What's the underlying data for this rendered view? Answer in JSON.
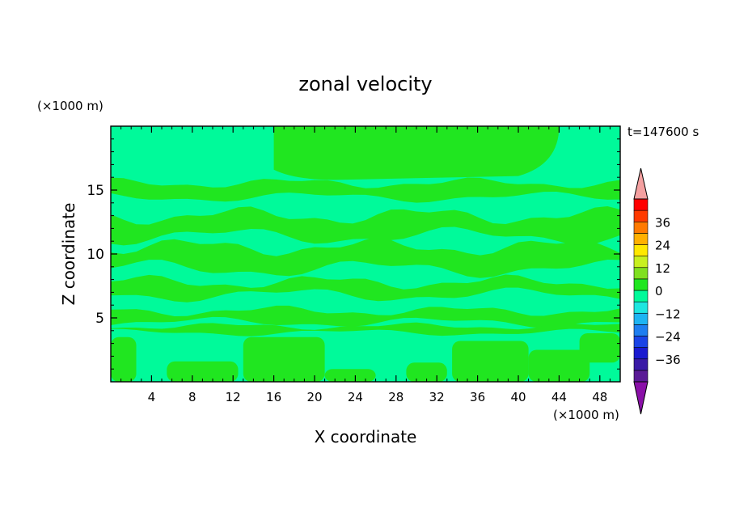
{
  "chart_data": {
    "type": "heatmap",
    "title": "zonal velocity",
    "xlabel": "X coordinate",
    "ylabel": "Z coordinate",
    "x_unit": "(×1000 m)",
    "y_unit": "(×1000 m)",
    "time_label": "t=147600 s",
    "xlim": [
      0,
      50
    ],
    "ylim": [
      0,
      20
    ],
    "x_ticks": [
      4,
      8,
      12,
      16,
      20,
      24,
      28,
      32,
      36,
      40,
      44,
      48
    ],
    "y_ticks": [
      5,
      10,
      15
    ],
    "colorbar": {
      "ticks": [
        36,
        24,
        12,
        0,
        -12,
        -24,
        -36
      ],
      "levels": [
        -42,
        -36,
        -30,
        -24,
        -18,
        -12,
        -6,
        0,
        6,
        12,
        18,
        24,
        30,
        36,
        42
      ],
      "colors": [
        "#5a1a96",
        "#3a1aa6",
        "#1a1ad0",
        "#1a44e6",
        "#1e7ef0",
        "#1eb4f2",
        "#1ee6e0",
        "#00fa9a",
        "#20e620",
        "#80e020",
        "#c8f020",
        "#ffe800",
        "#ffb000",
        "#ff7a00",
        "#ff3a00",
        "#ff0000"
      ],
      "over_color": "#f4a0a0",
      "under_color": "#8a10a8"
    },
    "field_colors": {
      "negative": "#00fa9a",
      "positive": "#20e620"
    },
    "positive_regions": [
      {
        "x_range": [
          16,
          44
        ],
        "z_range": [
          15.8,
          20
        ],
        "shape": "top-block"
      },
      {
        "z_center": 15.0,
        "thickness": 1.1,
        "amplitude": 0.3
      },
      {
        "z_center": 12.2,
        "thickness": 1.6,
        "amplitude": 0.5
      },
      {
        "z_center": 9.7,
        "thickness": 1.7,
        "amplitude": 0.5
      },
      {
        "z_center": 7.3,
        "thickness": 1.0,
        "amplitude": 0.4
      },
      {
        "z_center": 5.1,
        "thickness": 0.9,
        "amplitude": 0.3
      },
      {
        "z_center": 4.1,
        "thickness": 0.5,
        "amplitude": 0.2
      }
    ],
    "positive_blobs": [
      {
        "x_range": [
          0,
          2.5
        ],
        "z_range": [
          0,
          3.5
        ]
      },
      {
        "x_range": [
          5.5,
          12.5
        ],
        "z_range": [
          0,
          1.6
        ]
      },
      {
        "x_range": [
          13,
          21
        ],
        "z_range": [
          0,
          3.5
        ]
      },
      {
        "x_range": [
          21,
          26
        ],
        "z_range": [
          0,
          1.0
        ]
      },
      {
        "x_range": [
          29,
          33
        ],
        "z_range": [
          0,
          1.5
        ]
      },
      {
        "x_range": [
          33.5,
          41
        ],
        "z_range": [
          0,
          3.2
        ]
      },
      {
        "x_range": [
          41,
          47
        ],
        "z_range": [
          0,
          2.5
        ]
      },
      {
        "x_range": [
          46,
          50
        ],
        "z_range": [
          1.5,
          3.8
        ]
      }
    ]
  }
}
